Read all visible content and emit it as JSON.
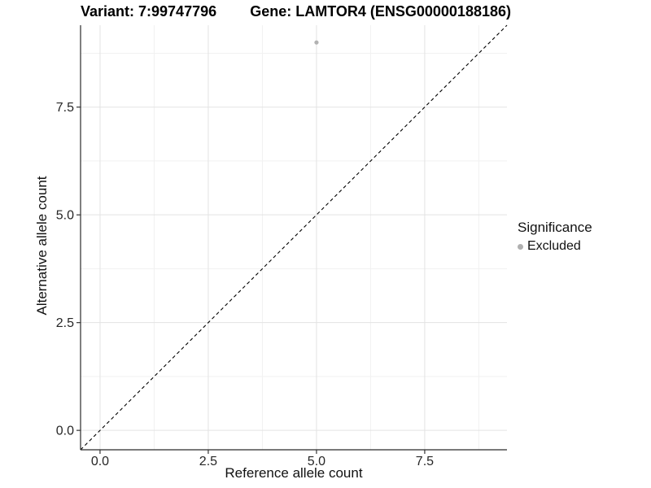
{
  "chart_data": {
    "type": "scatter",
    "titles": {
      "left": "Variant: 7:99747796",
      "right": "Gene: LAMTOR4 (ENSG00000188186)"
    },
    "xlabel": "Reference allele count",
    "ylabel": "Alternative allele count",
    "xlim": [
      -0.45,
      9.4
    ],
    "ylim": [
      -0.45,
      9.4
    ],
    "x_ticks": {
      "values": [
        0,
        2.5,
        5,
        7.5
      ],
      "labels": [
        "0.0",
        "2.5",
        "5.0",
        "7.5"
      ]
    },
    "y_ticks": {
      "values": [
        0,
        2.5,
        5,
        7.5
      ],
      "labels": [
        "0.0",
        "2.5",
        "5.0",
        "7.5"
      ]
    },
    "x_minor_ticks": [
      1.25,
      3.75,
      6.25,
      8.75
    ],
    "y_minor_ticks": [
      1.25,
      3.75,
      6.25,
      8.75
    ],
    "grid": true,
    "points": [
      {
        "x": 5.0,
        "y": 9.0,
        "significance": "Excluded"
      }
    ],
    "identity_line": {
      "style": "dashed",
      "from": -0.45,
      "to": 9.4,
      "color": "#000000"
    },
    "legend": {
      "title": "Significance",
      "position": "right",
      "entries": [
        {
          "label": "Excluded",
          "color": "#b0b0b0",
          "marker": "circle"
        }
      ]
    },
    "colors": {
      "point": "#b2b2b2",
      "grid_major": "#e3e3e3",
      "grid_minor": "#f1f1f1",
      "axis_line": "#2b2b2b",
      "tick_mark": "#333333",
      "tick_text": "#262626",
      "background": "#ffffff"
    }
  }
}
